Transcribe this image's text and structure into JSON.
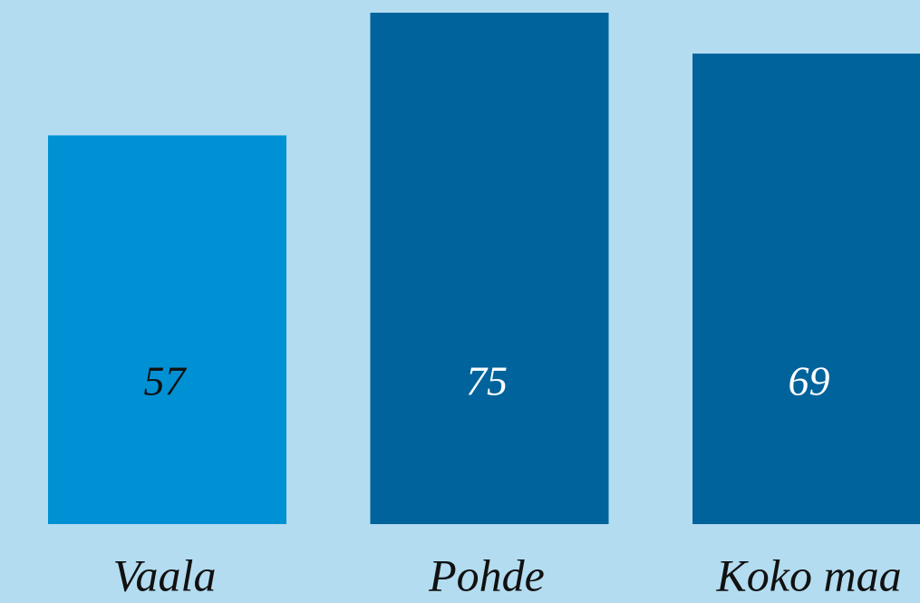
{
  "chart_data": {
    "type": "bar",
    "categories": [
      "Vaala",
      "Pohde",
      "Koko maa"
    ],
    "values": [
      57,
      75,
      69
    ],
    "colors": [
      "#0091d5",
      "#00639c",
      "#00639c"
    ],
    "label_colors": [
      "#111111",
      "#ffffff",
      "#ffffff"
    ]
  }
}
